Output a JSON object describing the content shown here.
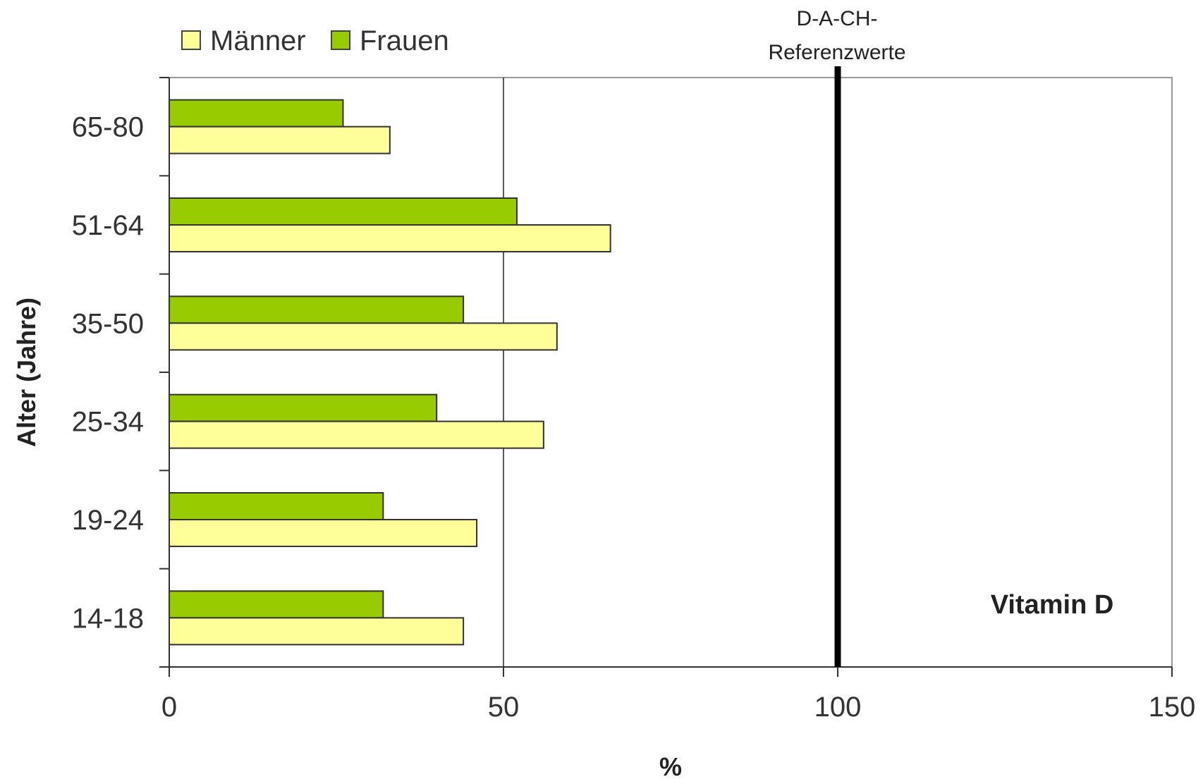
{
  "chart_data": {
    "type": "bar",
    "orientation": "horizontal",
    "categories": [
      "65-80",
      "51-64",
      "35-50",
      "25-34",
      "19-24",
      "14-18"
    ],
    "series": [
      {
        "name": "Frauen",
        "values": [
          26,
          52,
          44,
          40,
          32,
          32
        ],
        "color": "#99cc00"
      },
      {
        "name": "Männer",
        "values": [
          33,
          66,
          58,
          56,
          46,
          44
        ],
        "color": "#ffff99"
      }
    ],
    "xlabel": "%",
    "ylabel": "Alter (Jahre)",
    "xlim": [
      0,
      150
    ],
    "x_ticks": [
      "0",
      "50",
      "100",
      "150"
    ],
    "gridlines_x": [
      50
    ],
    "legend_position": "top-left",
    "legend_order": [
      "Männer",
      "Frauen"
    ],
    "reference_line": {
      "value": 100,
      "label_lines": [
        "D-A-CH-",
        "Referenzwerte"
      ]
    },
    "annotation": "Vitamin D"
  }
}
